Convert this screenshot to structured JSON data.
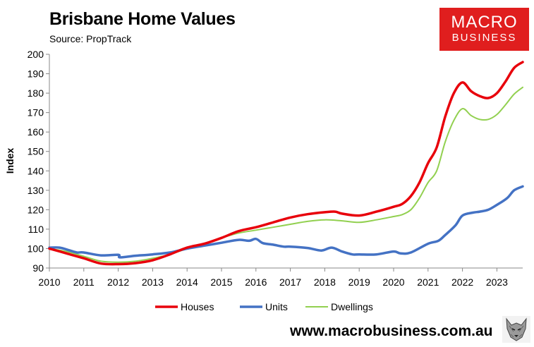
{
  "header": {
    "title": "Brisbane Home Values",
    "subtitle": "Source: PropTrack"
  },
  "logo": {
    "line1": "MACRO",
    "line2": "BUSINESS",
    "bg_color": "#e01e1e"
  },
  "footer": {
    "url": "www.macrobusiness.com.au"
  },
  "chart_data": {
    "type": "line",
    "title": "Brisbane Home Values",
    "subtitle": "Source: PropTrack",
    "xlabel": "",
    "ylabel": "Index",
    "xlim": [
      2010,
      2023.75
    ],
    "ylim": [
      90,
      200
    ],
    "yticks": [
      90,
      100,
      110,
      120,
      130,
      140,
      150,
      160,
      170,
      180,
      190,
      200
    ],
    "xticks": [
      2010,
      2011,
      2012,
      2013,
      2014,
      2015,
      2016,
      2017,
      2018,
      2019,
      2020,
      2021,
      2022,
      2023
    ],
    "grid": false,
    "legend": "bottom",
    "series": [
      {
        "name": "Houses",
        "color": "#e8000b",
        "width": 3.5,
        "points": [
          [
            2010,
            100
          ],
          [
            2010.5,
            97.5
          ],
          [
            2011,
            95
          ],
          [
            2011.5,
            92.3
          ],
          [
            2012,
            92
          ],
          [
            2012.5,
            92.5
          ],
          [
            2013,
            94
          ],
          [
            2013.5,
            97
          ],
          [
            2014,
            100.5
          ],
          [
            2014.5,
            102.5
          ],
          [
            2015,
            105.5
          ],
          [
            2015.5,
            109
          ],
          [
            2016,
            111
          ],
          [
            2016.5,
            113.5
          ],
          [
            2017,
            116
          ],
          [
            2017.5,
            117.7
          ],
          [
            2018,
            118.7
          ],
          [
            2018.3,
            119
          ],
          [
            2018.5,
            118
          ],
          [
            2019,
            117
          ],
          [
            2019.5,
            119
          ],
          [
            2020,
            121.5
          ],
          [
            2020.25,
            123
          ],
          [
            2020.5,
            127
          ],
          [
            2020.75,
            134
          ],
          [
            2021,
            144
          ],
          [
            2021.25,
            152
          ],
          [
            2021.5,
            168
          ],
          [
            2021.75,
            180
          ],
          [
            2022,
            185.5
          ],
          [
            2022.25,
            181
          ],
          [
            2022.5,
            178.5
          ],
          [
            2022.75,
            177.5
          ],
          [
            2023,
            180
          ],
          [
            2023.25,
            186
          ],
          [
            2023.5,
            193
          ],
          [
            2023.75,
            196
          ]
        ]
      },
      {
        "name": "Units",
        "color": "#4472c4",
        "width": 3.5,
        "points": [
          [
            2010,
            100.5
          ],
          [
            2010.3,
            100.5
          ],
          [
            2010.6,
            99
          ],
          [
            2010.8,
            98
          ],
          [
            2011,
            98
          ],
          [
            2011.5,
            96.5
          ],
          [
            2012,
            96.8
          ],
          [
            2012.05,
            95.5
          ],
          [
            2012.5,
            96.3
          ],
          [
            2013,
            97
          ],
          [
            2013.5,
            98
          ],
          [
            2014,
            100
          ],
          [
            2014.5,
            101.5
          ],
          [
            2015,
            103
          ],
          [
            2015.5,
            104.5
          ],
          [
            2015.8,
            104
          ],
          [
            2016,
            105
          ],
          [
            2016.2,
            102.8
          ],
          [
            2016.5,
            102
          ],
          [
            2016.8,
            101
          ],
          [
            2017,
            101
          ],
          [
            2017.5,
            100.3
          ],
          [
            2017.9,
            99
          ],
          [
            2018.2,
            100.5
          ],
          [
            2018.5,
            98.5
          ],
          [
            2018.8,
            97
          ],
          [
            2019,
            97
          ],
          [
            2019.5,
            97
          ],
          [
            2020,
            98.5
          ],
          [
            2020.2,
            97.5
          ],
          [
            2020.5,
            98
          ],
          [
            2021,
            102.5
          ],
          [
            2021.3,
            104
          ],
          [
            2021.5,
            107
          ],
          [
            2021.8,
            112
          ],
          [
            2022,
            117
          ],
          [
            2022.3,
            118.5
          ],
          [
            2022.5,
            119
          ],
          [
            2022.75,
            120
          ],
          [
            2023,
            122.5
          ],
          [
            2023.3,
            126
          ],
          [
            2023.5,
            130
          ],
          [
            2023.75,
            132
          ]
        ]
      },
      {
        "name": "Dwellings",
        "color": "#92d050",
        "width": 2,
        "points": [
          [
            2010,
            100
          ],
          [
            2010.5,
            98.5
          ],
          [
            2011,
            96
          ],
          [
            2011.5,
            93.5
          ],
          [
            2012,
            93
          ],
          [
            2012.5,
            93.5
          ],
          [
            2013,
            95
          ],
          [
            2013.5,
            97
          ],
          [
            2014,
            100
          ],
          [
            2014.5,
            102.5
          ],
          [
            2015,
            105.5
          ],
          [
            2015.5,
            108
          ],
          [
            2016,
            109.5
          ],
          [
            2016.5,
            111
          ],
          [
            2017,
            112.5
          ],
          [
            2017.5,
            114
          ],
          [
            2018,
            114.8
          ],
          [
            2018.5,
            114.3
          ],
          [
            2019,
            113.5
          ],
          [
            2019.5,
            114.8
          ],
          [
            2020,
            116.5
          ],
          [
            2020.25,
            117.5
          ],
          [
            2020.5,
            120
          ],
          [
            2020.75,
            126
          ],
          [
            2021,
            134
          ],
          [
            2021.25,
            140
          ],
          [
            2021.5,
            155
          ],
          [
            2021.75,
            166
          ],
          [
            2022,
            172
          ],
          [
            2022.25,
            168.5
          ],
          [
            2022.5,
            166.5
          ],
          [
            2022.75,
            166.5
          ],
          [
            2023,
            169
          ],
          [
            2023.25,
            174
          ],
          [
            2023.5,
            179.5
          ],
          [
            2023.75,
            183
          ]
        ]
      }
    ]
  }
}
